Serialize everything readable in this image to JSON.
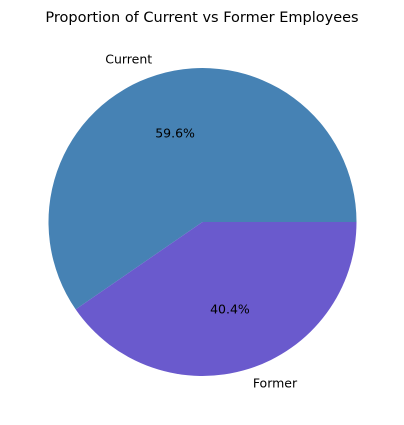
{
  "chart_data": {
    "type": "pie",
    "title": "Proportion of Current vs Former Employees",
    "start_angle_deg": 0,
    "direction": "counterclockwise",
    "slices": [
      {
        "label": "Current",
        "value": 59.6,
        "pct_text": "59.6%",
        "color": "#4682b4"
      },
      {
        "label": "Former",
        "value": 40.4,
        "pct_text": "40.4%",
        "color": "#6a5acd"
      }
    ]
  }
}
